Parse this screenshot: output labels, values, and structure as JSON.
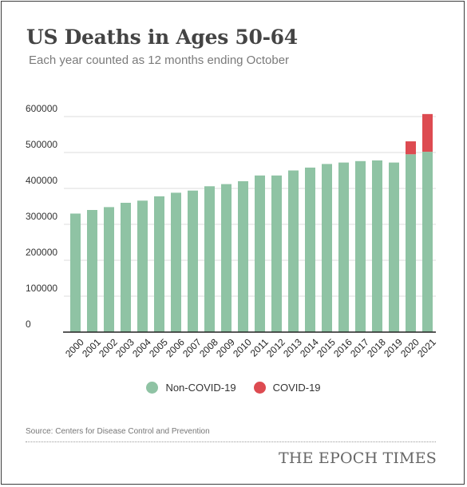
{
  "header": {
    "title": "US Deaths in Ages 50-64",
    "subtitle": "Each year counted as 12 months ending October"
  },
  "legend": {
    "non_covid_label": "Non-COVID-19",
    "covid_label": "COVID-19"
  },
  "footer": {
    "source": "Source: Centers for Disease Control and Prevention",
    "brand": "THE EPOCH TIMES"
  },
  "colors": {
    "non_covid": "#8fc3a4",
    "covid": "#dd4b51",
    "grid": "#dddddd",
    "axis": "#222222"
  },
  "chart_data": {
    "type": "bar",
    "stacked": true,
    "categories": [
      "2000",
      "2001",
      "2002",
      "2003",
      "2004",
      "2005",
      "2006",
      "2007",
      "2008",
      "2009",
      "2010",
      "2011",
      "2012",
      "2013",
      "2014",
      "2015",
      "2016",
      "2017",
      "2018",
      "2019",
      "2020",
      "2021"
    ],
    "series": [
      {
        "name": "Non-COVID-19",
        "values": [
          330000,
          340000,
          348000,
          360000,
          366000,
          378000,
          388000,
          394000,
          406000,
          412000,
          420000,
          436000,
          436000,
          450000,
          458000,
          468000,
          472000,
          476000,
          478000,
          472000,
          495000,
          502000
        ]
      },
      {
        "name": "COVID-19",
        "values": [
          0,
          0,
          0,
          0,
          0,
          0,
          0,
          0,
          0,
          0,
          0,
          0,
          0,
          0,
          0,
          0,
          0,
          0,
          0,
          0,
          36000,
          105000
        ]
      }
    ],
    "ylim": [
      0,
      600000
    ],
    "yticks": [
      0,
      100000,
      200000,
      300000,
      400000,
      500000,
      600000
    ],
    "ytick_labels": [
      "0",
      "100000",
      "200000",
      "300000",
      "400000",
      "500000",
      "600000"
    ],
    "grid": true,
    "legend_position": "bottom-center"
  }
}
